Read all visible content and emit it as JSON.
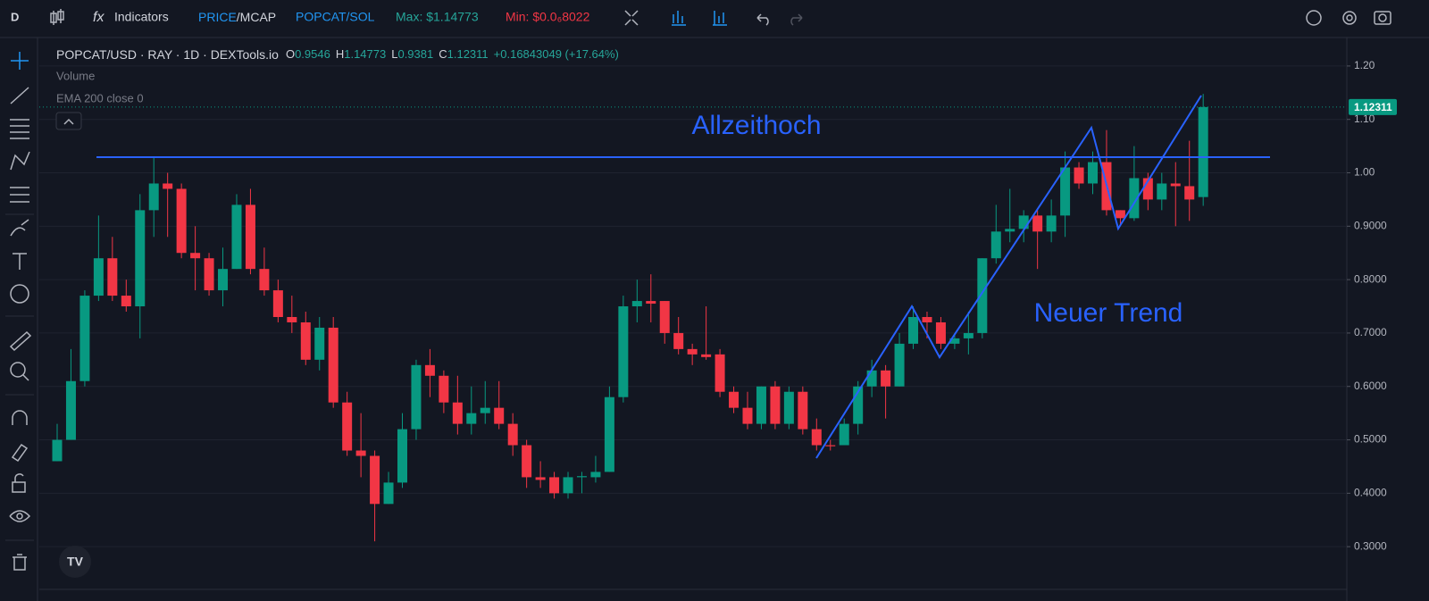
{
  "toolbar": {
    "symbol_letter": "D",
    "indicators": "Indicators",
    "price": "PRICE",
    "mcap": "/MCAP",
    "pair": "POPCAT/SOL",
    "max": "Max: $1.14773",
    "min": "Min: $0.0₆8022"
  },
  "legend": {
    "symbol": "POPCAT/USD · RAY · 1D · DEXTools.io",
    "o_label": "O",
    "o_value": "0.9546",
    "h_label": "H",
    "h_value": "1.14773",
    "l_label": "L",
    "l_value": "0.9381",
    "c_label": "C",
    "c_value": "1.12311",
    "change": "+0.16843049 (+17.64%)",
    "volume": "Volume",
    "ema": "EMA 200 close 0"
  },
  "chart_data": {
    "type": "candlestick",
    "annotations": [
      "Allzeithoch",
      "Neuer Trend"
    ],
    "up_color": "#089981",
    "down_color": "#f23645",
    "ylim": [
      0.22,
      1.25
    ],
    "yticks": [
      {
        "value": 0.3,
        "label": "0.3000"
      },
      {
        "value": 0.4,
        "label": "0.4000"
      },
      {
        "value": 0.5,
        "label": "0.5000"
      },
      {
        "value": 0.6,
        "label": "0.6000"
      },
      {
        "value": 0.7,
        "label": "0.7000"
      },
      {
        "value": 0.8,
        "label": "0.8000"
      },
      {
        "value": 0.9,
        "label": "0.9000"
      },
      {
        "value": 1.0,
        "label": "1.00"
      },
      {
        "value": 1.1,
        "label": "1.10"
      },
      {
        "value": 1.2,
        "label": "1.20"
      }
    ],
    "grid": true,
    "open": [
      0.46,
      0.5,
      0.61,
      0.77,
      0.84,
      0.77,
      0.75,
      0.93,
      0.98,
      0.97,
      0.85,
      0.84,
      0.78,
      0.82,
      0.94,
      0.82,
      0.78,
      0.73,
      0.72,
      0.65,
      0.71,
      0.57,
      0.48,
      0.47,
      0.38,
      0.42,
      0.52,
      0.64,
      0.62,
      0.57,
      0.53,
      0.55,
      0.56,
      0.53,
      0.49,
      0.43,
      0.43,
      0.4,
      0.43,
      0.43,
      0.44,
      0.58,
      0.75,
      0.76,
      0.76,
      0.7,
      0.67,
      0.66,
      0.66,
      0.59,
      0.56,
      0.53,
      0.6,
      0.53,
      0.59,
      0.52,
      0.49,
      0.49,
      0.53,
      0.6,
      0.63,
      0.6,
      0.68,
      0.73,
      0.72,
      0.68,
      0.69,
      0.7,
      0.84,
      0.89,
      0.895,
      0.92,
      0.89,
      0.92,
      1.01,
      0.98,
      1.02,
      0.93,
      0.915,
      0.99,
      0.95,
      0.98,
      0.975,
      0.9546
    ],
    "high": [
      0.53,
      0.67,
      0.78,
      0.92,
      0.88,
      0.8,
      0.96,
      1.03,
      1.0,
      0.98,
      0.9,
      0.85,
      0.86,
      0.96,
      0.97,
      0.86,
      0.8,
      0.77,
      0.74,
      0.73,
      0.73,
      0.59,
      0.55,
      0.48,
      0.44,
      0.55,
      0.65,
      0.67,
      0.63,
      0.62,
      0.6,
      0.61,
      0.61,
      0.55,
      0.5,
      0.46,
      0.44,
      0.44,
      0.44,
      0.47,
      0.6,
      0.77,
      0.8,
      0.81,
      0.76,
      0.73,
      0.68,
      0.75,
      0.67,
      0.6,
      0.59,
      0.6,
      0.61,
      0.6,
      0.6,
      0.54,
      0.5,
      0.54,
      0.61,
      0.65,
      0.64,
      0.7,
      0.75,
      0.74,
      0.73,
      0.7,
      0.74,
      0.84,
      0.94,
      0.97,
      0.93,
      0.93,
      0.95,
      1.04,
      1.02,
      1.04,
      1.08,
      0.93,
      1.05,
      1.0,
      1.0,
      1.02,
      1.06,
      1.14773
    ],
    "low": [
      0.46,
      0.5,
      0.6,
      0.76,
      0.76,
      0.74,
      0.69,
      0.88,
      0.88,
      0.84,
      0.78,
      0.77,
      0.75,
      0.82,
      0.81,
      0.77,
      0.72,
      0.7,
      0.64,
      0.63,
      0.56,
      0.47,
      0.43,
      0.31,
      0.38,
      0.41,
      0.5,
      0.58,
      0.55,
      0.51,
      0.51,
      0.53,
      0.52,
      0.47,
      0.41,
      0.41,
      0.39,
      0.39,
      0.4,
      0.42,
      0.44,
      0.57,
      0.72,
      0.72,
      0.68,
      0.66,
      0.64,
      0.65,
      0.58,
      0.55,
      0.52,
      0.52,
      0.52,
      0.52,
      0.51,
      0.48,
      0.48,
      0.49,
      0.51,
      0.58,
      0.54,
      0.6,
      0.67,
      0.69,
      0.67,
      0.67,
      0.66,
      0.69,
      0.83,
      0.87,
      0.87,
      0.82,
      0.87,
      0.88,
      0.97,
      0.96,
      0.92,
      0.9,
      0.91,
      0.93,
      0.93,
      0.9,
      0.91,
      0.9381
    ],
    "close": [
      0.5,
      0.61,
      0.77,
      0.84,
      0.77,
      0.75,
      0.93,
      0.98,
      0.97,
      0.85,
      0.84,
      0.78,
      0.82,
      0.94,
      0.82,
      0.78,
      0.73,
      0.72,
      0.65,
      0.71,
      0.57,
      0.48,
      0.47,
      0.38,
      0.42,
      0.52,
      0.64,
      0.62,
      0.57,
      0.53,
      0.55,
      0.56,
      0.53,
      0.49,
      0.43,
      0.425,
      0.4,
      0.43,
      0.432,
      0.44,
      0.58,
      0.75,
      0.76,
      0.755,
      0.7,
      0.67,
      0.66,
      0.655,
      0.59,
      0.56,
      0.53,
      0.6,
      0.53,
      0.59,
      0.52,
      0.49,
      0.488,
      0.53,
      0.6,
      0.63,
      0.6,
      0.68,
      0.73,
      0.72,
      0.68,
      0.69,
      0.7,
      0.84,
      0.89,
      0.895,
      0.92,
      0.89,
      0.92,
      1.01,
      0.98,
      1.02,
      0.93,
      0.915,
      0.99,
      0.95,
      0.98,
      0.975,
      0.95,
      1.12311
    ]
  }
}
